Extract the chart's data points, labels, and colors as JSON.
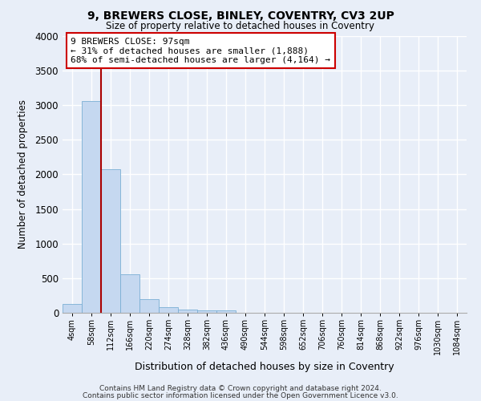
{
  "title": "9, BREWERS CLOSE, BINLEY, COVENTRY, CV3 2UP",
  "subtitle": "Size of property relative to detached houses in Coventry",
  "xlabel": "Distribution of detached houses by size in Coventry",
  "ylabel": "Number of detached properties",
  "bar_color": "#c5d8f0",
  "bar_edge_color": "#7aafd4",
  "categories": [
    "4sqm",
    "58sqm",
    "112sqm",
    "166sqm",
    "220sqm",
    "274sqm",
    "328sqm",
    "382sqm",
    "436sqm",
    "490sqm",
    "544sqm",
    "598sqm",
    "652sqm",
    "706sqm",
    "760sqm",
    "814sqm",
    "868sqm",
    "922sqm",
    "976sqm",
    "1030sqm",
    "1084sqm"
  ],
  "values": [
    130,
    3060,
    2070,
    560,
    200,
    80,
    50,
    40,
    40,
    0,
    0,
    0,
    0,
    0,
    0,
    0,
    0,
    0,
    0,
    0,
    0
  ],
  "ylim": [
    0,
    4000
  ],
  "yticks": [
    0,
    500,
    1000,
    1500,
    2000,
    2500,
    3000,
    3500,
    4000
  ],
  "vline_color": "#aa0000",
  "annotation_text": "9 BREWERS CLOSE: 97sqm\n← 31% of detached houses are smaller (1,888)\n68% of semi-detached houses are larger (4,164) →",
  "annotation_box_color": "#ffffff",
  "annotation_box_edge": "#cc0000",
  "footer_line1": "Contains HM Land Registry data © Crown copyright and database right 2024.",
  "footer_line2": "Contains public sector information licensed under the Open Government Licence v3.0.",
  "background_color": "#e8eef8",
  "grid_color": "#ffffff",
  "spine_color": "#aaaaaa"
}
